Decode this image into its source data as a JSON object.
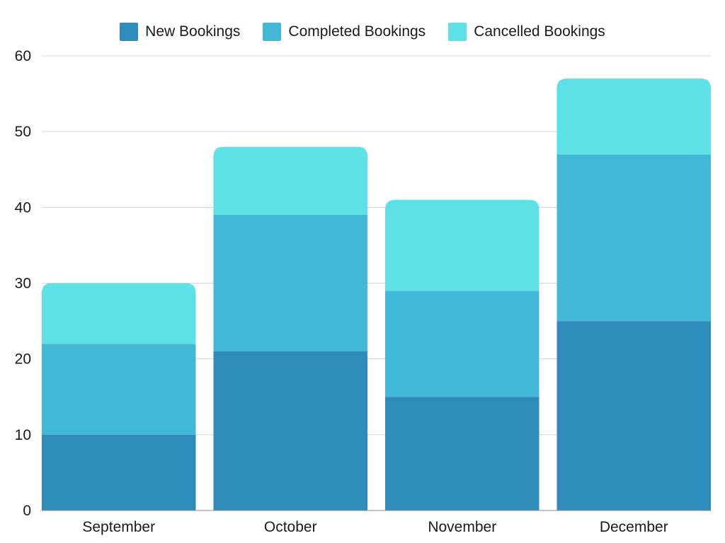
{
  "chart_data": {
    "type": "bar",
    "stacked": true,
    "categories": [
      "September",
      "October",
      "November",
      "December"
    ],
    "series": [
      {
        "name": "New Bookings",
        "color": "#2E8BBA",
        "values": [
          10,
          21,
          15,
          25
        ]
      },
      {
        "name": "Completed Bookings",
        "color": "#42B8D6",
        "values": [
          12,
          18,
          14,
          22
        ]
      },
      {
        "name": "Cancelled Bookings",
        "color": "#5DE0E6",
        "values": [
          8,
          9,
          12,
          10
        ]
      }
    ],
    "ylim": [
      0,
      60
    ],
    "yticks": [
      "0",
      "10",
      "20",
      "30",
      "40",
      "50",
      "60"
    ],
    "grid": true,
    "legend_position": "top-center"
  }
}
